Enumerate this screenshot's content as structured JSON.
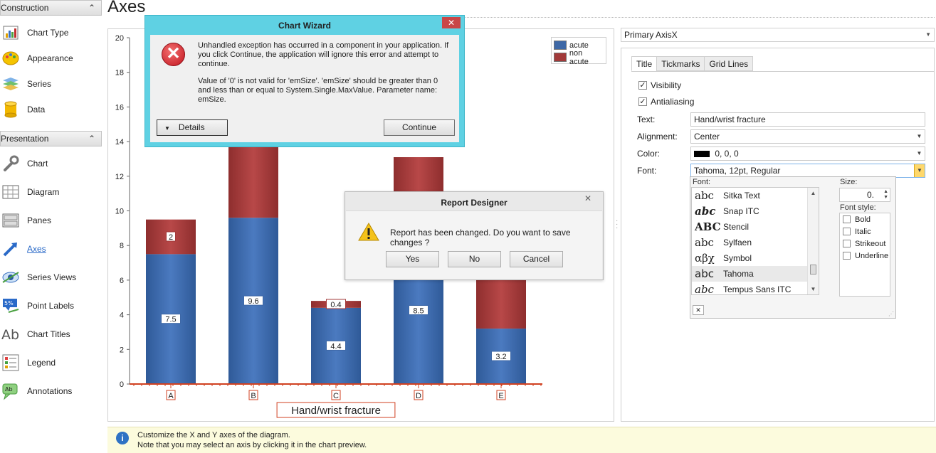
{
  "page_title": "Axes",
  "nav": {
    "construction": {
      "label": "Construction",
      "items": [
        {
          "label": "Chart Type",
          "icon": "chart-type-icon"
        },
        {
          "label": "Appearance",
          "icon": "appearance-icon"
        },
        {
          "label": "Series",
          "icon": "series-icon"
        },
        {
          "label": "Data",
          "icon": "data-icon"
        }
      ]
    },
    "presentation": {
      "label": "Presentation",
      "items": [
        {
          "label": "Chart",
          "icon": "wrench-icon"
        },
        {
          "label": "Diagram",
          "icon": "diagram-icon"
        },
        {
          "label": "Panes",
          "icon": "panes-icon"
        },
        {
          "label": "Axes",
          "icon": "axes-icon"
        },
        {
          "label": "Series Views",
          "icon": "series-views-icon"
        },
        {
          "label": "Point Labels",
          "icon": "point-labels-icon"
        },
        {
          "label": "Chart Titles",
          "icon": "chart-titles-icon"
        },
        {
          "label": "Legend",
          "icon": "legend-icon"
        },
        {
          "label": "Annotations",
          "icon": "annotations-icon"
        }
      ]
    },
    "active": "Axes"
  },
  "chart_data": {
    "type": "bar",
    "stacked": true,
    "categories": [
      "A",
      "B",
      "C",
      "D",
      "E"
    ],
    "series": [
      {
        "name": "acute",
        "values": [
          7.5,
          9.6,
          4.4,
          8.5,
          3.2
        ],
        "labels": [
          "7.5",
          "9.6",
          "4.4",
          "8.5",
          "3.2"
        ],
        "color": "#3e68a6"
      },
      {
        "name": "non acute",
        "values": [
          2,
          4.4,
          0.4,
          4.6,
          2.8
        ],
        "labels": [
          "2",
          "",
          "0.4",
          "",
          ""
        ],
        "color": "#a23a3a"
      }
    ],
    "title": "",
    "xlabel": "Hand/wrist fracture",
    "ylabel": "",
    "ylim": [
      0,
      20
    ],
    "yticks": [
      "0",
      "2",
      "4",
      "6",
      "8",
      "10",
      "12",
      "14",
      "16",
      "18",
      "20"
    ],
    "grid": false,
    "legend_position": "top-right"
  },
  "axis_selector": {
    "value": "Primary AxisX"
  },
  "tabs": [
    "Title",
    "Tickmarks",
    "Grid Lines"
  ],
  "active_tab": "Title",
  "props": {
    "visibility": {
      "label": "Visibility",
      "checked": true
    },
    "antialiasing": {
      "label": "Antialiasing",
      "checked": true
    },
    "text": {
      "label": "Text:",
      "value": "Hand/wrist fracture"
    },
    "alignment": {
      "label": "Alignment:",
      "value": "Center"
    },
    "color": {
      "label": "Color:",
      "value": "0, 0, 0",
      "swatch": "#000000"
    },
    "font": {
      "label": "Font:",
      "value": "Tahoma, 12pt, Regular"
    }
  },
  "font_popup": {
    "font_label": "Font:",
    "size_label": "Size:",
    "size_value": "0.",
    "style_label": "Font style:",
    "fonts": [
      {
        "sample": "abc",
        "name": "Sitka Text"
      },
      {
        "sample": "abc",
        "name": "Snap ITC"
      },
      {
        "sample": "ABC",
        "name": "Stencil"
      },
      {
        "sample": "abc",
        "name": "Sylfaen"
      },
      {
        "sample": "αβχ",
        "name": "Symbol"
      },
      {
        "sample": "abc",
        "name": "Tahoma"
      },
      {
        "sample": "abc",
        "name": "Tempus Sans ITC"
      }
    ],
    "selected_font": "Tahoma",
    "styles": [
      {
        "label": "Bold",
        "checked": false
      },
      {
        "label": "Italic",
        "checked": false
      },
      {
        "label": "Strikeout",
        "checked": false
      },
      {
        "label": "Underline",
        "checked": false
      }
    ]
  },
  "hint": {
    "line1": "Customize the X and Y axes of the diagram.",
    "line2": "Note that you may select an axis by clicking it in the chart preview."
  },
  "chart_wizard": {
    "title": "Chart Wizard",
    "close": "✕",
    "message1": "Unhandled exception has occurred in a component in your application. If you click Continue, the application will ignore this error and attempt to continue.",
    "message2": "Value of '0' is not valid for 'emSize'. 'emSize' should be greater than 0 and less than or equal to System.Single.MaxValue. Parameter name: emSize.",
    "details": "Details",
    "continue": "Continue"
  },
  "report_designer": {
    "title": "Report Designer",
    "close": "✕",
    "message": "Report has been changed. Do you want to save changes ?",
    "yes": "Yes",
    "no": "No",
    "cancel": "Cancel"
  }
}
